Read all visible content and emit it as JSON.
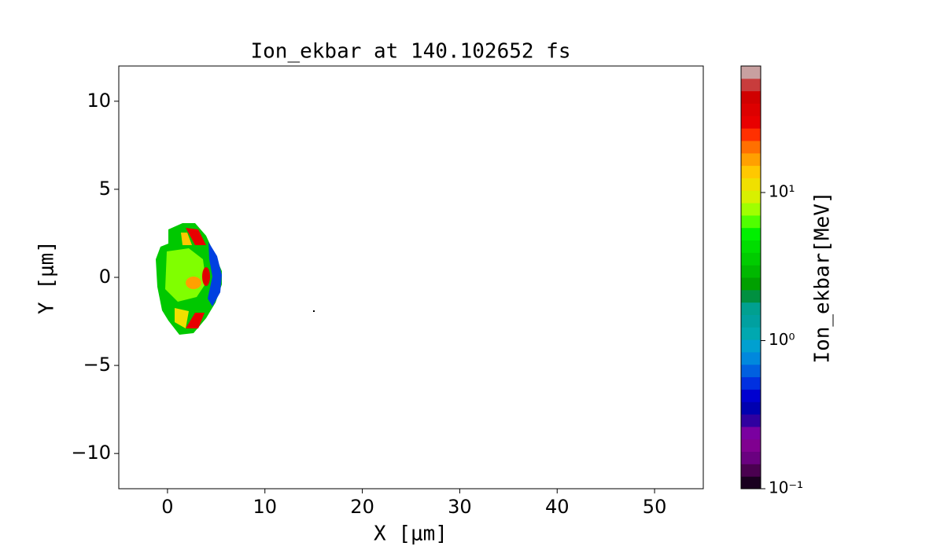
{
  "chart_data": {
    "type": "heatmap",
    "title": "Ion_ekbar at 140.102652 fs",
    "x_label": "X  [μm]",
    "y_label": "Y  [μm]",
    "xlim": [
      -5,
      55
    ],
    "xticks": [
      0,
      10,
      20,
      30,
      40,
      50
    ],
    "ylim": [
      -12,
      12
    ],
    "yticks": [
      {
        "value": -10,
        "label": "−10"
      },
      {
        "value": -5,
        "label": "−5"
      },
      0,
      5,
      10
    ],
    "colorbar": {
      "label": "Ion_ekbar[MeV]",
      "log_scale": true,
      "clim": [
        0.1,
        71.5
      ],
      "ticks": [
        {
          "value": 0.1,
          "label": "10⁻¹"
        },
        {
          "value": 1,
          "label": "10⁰"
        },
        {
          "value": 10,
          "label": "10¹"
        }
      ],
      "colors": [
        "#1a0020",
        "#4a0050",
        "#6a0080",
        "#800090",
        "#7a00a0",
        "#3000a0",
        "#0000b0",
        "#0000d0",
        "#0030e0",
        "#0060e0",
        "#0088dd",
        "#00a0d0",
        "#00a8b0",
        "#00a0a0",
        "#00a090",
        "#009040",
        "#00a000",
        "#00b800",
        "#00cc00",
        "#00dd00",
        "#00f000",
        "#50ff00",
        "#a0ff00",
        "#d8f000",
        "#f0e000",
        "#ffc800",
        "#ffa000",
        "#ff7000",
        "#ff3000",
        "#e80000",
        "#dd0000",
        "#d00000",
        "#c83c3c",
        "#c8a0a0"
      ]
    }
  }
}
